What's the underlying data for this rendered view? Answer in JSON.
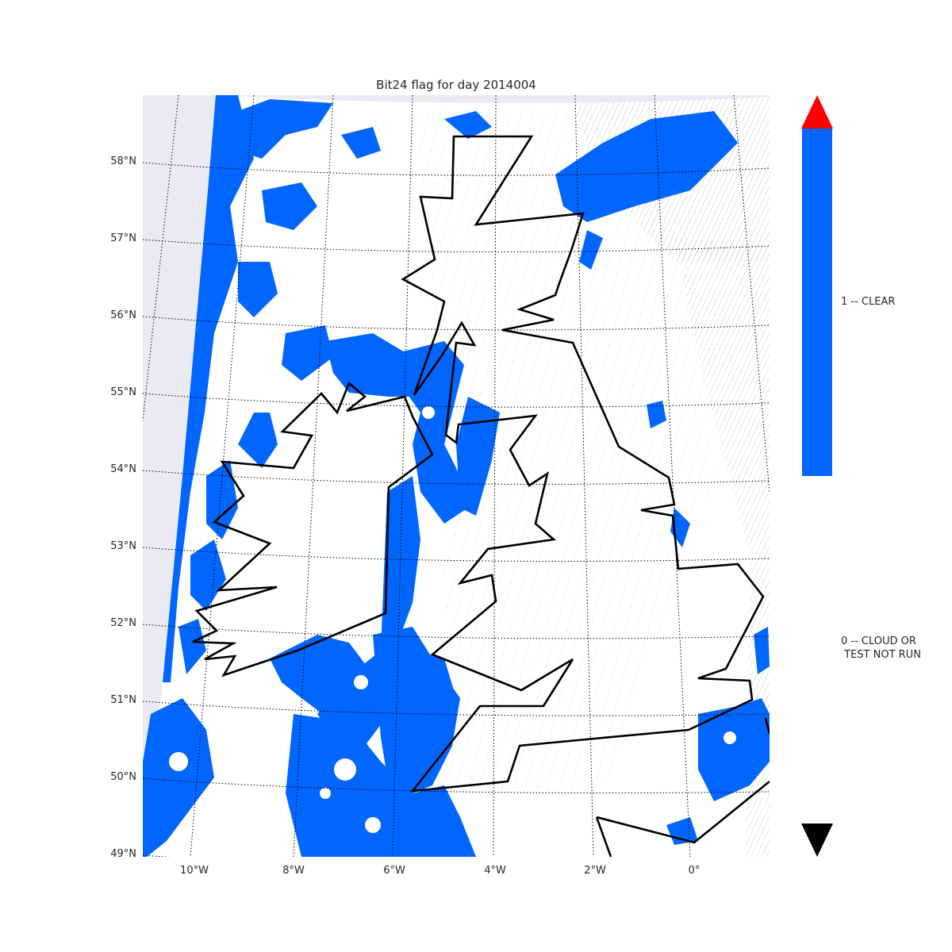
{
  "title": "Bit24 flag for day 2014004",
  "colors": {
    "clear": "#0066ff",
    "cloud_or_not_run": "#ffffff",
    "no_data": "#eaeaf2",
    "over": "#ff0000",
    "under": "#000000",
    "coastline": "#000000",
    "graticule": "#000000"
  },
  "latitude_labels": [
    "58°N",
    "57°N",
    "56°N",
    "55°N",
    "54°N",
    "53°N",
    "52°N",
    "51°N",
    "50°N",
    "49°N"
  ],
  "longitude_labels": [
    "10°W",
    "8°W",
    "6°W",
    "4°W",
    "2°W",
    "0°"
  ],
  "colorbar": {
    "labels": [
      "1 -- CLEAR",
      "0 -- CLOUD OR\n TEST NOT RUN"
    ],
    "extend": "both"
  }
}
